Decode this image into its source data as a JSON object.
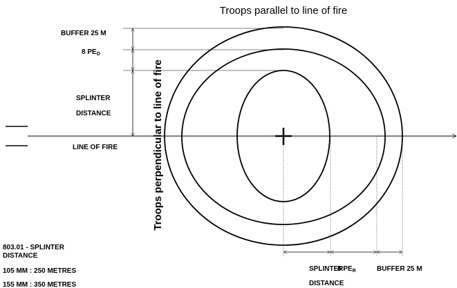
{
  "title": "Troops parallel to line of fire",
  "vertical_label": "Troops perpendicular to line of fire",
  "left_dims": {
    "buffer": "BUFFER 25 M",
    "pe": {
      "text": "8 PE",
      "sub": "D"
    },
    "splinter": [
      "SPLINTER",
      "DISTANCE"
    ]
  },
  "line_of_fire": "LINE OF  FIRE",
  "bottom_dims": {
    "splinter": [
      "SPLINTER",
      "DISTANCE"
    ],
    "pe": {
      "text": "8 PE",
      "sub": "R"
    },
    "buffer": "BUFFER 25 M"
  },
  "notes": [
    "803.01 - SPLINTER",
    "DISTANCE",
    "105 MM : 250 METRES",
    "155 MM : 350 METRES"
  ]
}
